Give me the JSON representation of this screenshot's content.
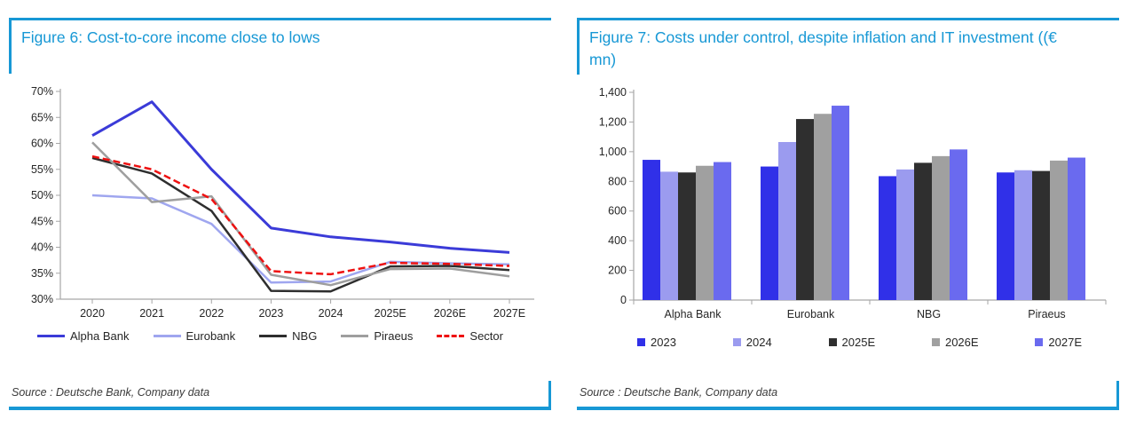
{
  "accent_color": "#1798D5",
  "axis_color": "#A6A6A6",
  "fig6": {
    "title": "Figure 6: Cost-to-core income close to lows",
    "source": "Source : Deutsche Bank, Company data",
    "chart_data": {
      "type": "line",
      "title": "Cost-to-core income close to lows",
      "categories": [
        "2020",
        "2021",
        "2022",
        "2023",
        "2024",
        "2025E",
        "2026E",
        "2027E"
      ],
      "series": [
        {
          "name": "Alpha Bank",
          "color": "#3B3BD8",
          "dash": false,
          "width": 3,
          "values": [
            61.5,
            68.0,
            55.0,
            43.7,
            42.0,
            41.0,
            39.8,
            39.0
          ]
        },
        {
          "name": "Eurobank",
          "color": "#9FA6EF",
          "dash": false,
          "width": 2.5,
          "values": [
            50.0,
            49.4,
            44.5,
            33.2,
            33.4,
            37.2,
            36.9,
            36.7
          ]
        },
        {
          "name": "NBG",
          "color": "#2E2E2E",
          "dash": false,
          "width": 2.5,
          "values": [
            57.2,
            54.2,
            47.0,
            31.6,
            31.5,
            36.3,
            36.4,
            35.6
          ]
        },
        {
          "name": "Piraeus",
          "color": "#9E9E9E",
          "dash": false,
          "width": 2.5,
          "values": [
            60.2,
            48.7,
            49.8,
            34.7,
            32.7,
            35.8,
            35.9,
            34.4
          ]
        },
        {
          "name": "Sector",
          "color": "#EE1111",
          "dash": true,
          "width": 2.5,
          "values": [
            57.5,
            55.0,
            49.3,
            35.4,
            34.8,
            37.0,
            36.8,
            36.4
          ]
        }
      ],
      "ylim": [
        30,
        70
      ],
      "ytick_step": 5,
      "ytick_format": "percent",
      "grid": false,
      "legend_position": "bottom"
    }
  },
  "fig7": {
    "title": "Figure 7: Costs under control, despite inflation and IT investment ((€ mn)",
    "source": "Source : Deutsche Bank, Company data",
    "chart_data": {
      "type": "bar",
      "title": "Costs under control, despite inflation and IT investment (€ mn)",
      "categories": [
        "Alpha Bank",
        "Eurobank",
        "NBG",
        "Piraeus"
      ],
      "series": [
        {
          "name": "2023",
          "color": "#3030E8",
          "values": [
            945,
            900,
            835,
            860
          ]
        },
        {
          "name": "2024",
          "color": "#9B9BEF",
          "values": [
            865,
            1065,
            880,
            875
          ]
        },
        {
          "name": "2025E",
          "color": "#2F2F2F",
          "values": [
            860,
            1220,
            925,
            870
          ]
        },
        {
          "name": "2026E",
          "color": "#A0A0A0",
          "values": [
            905,
            1255,
            970,
            940
          ]
        },
        {
          "name": "2027E",
          "color": "#6A6AEF",
          "values": [
            930,
            1310,
            1015,
            960
          ]
        }
      ],
      "ylim": [
        0,
        1400
      ],
      "ytick_step": 200,
      "ytick_format": "thousands",
      "grid": false,
      "legend_position": "bottom"
    }
  }
}
